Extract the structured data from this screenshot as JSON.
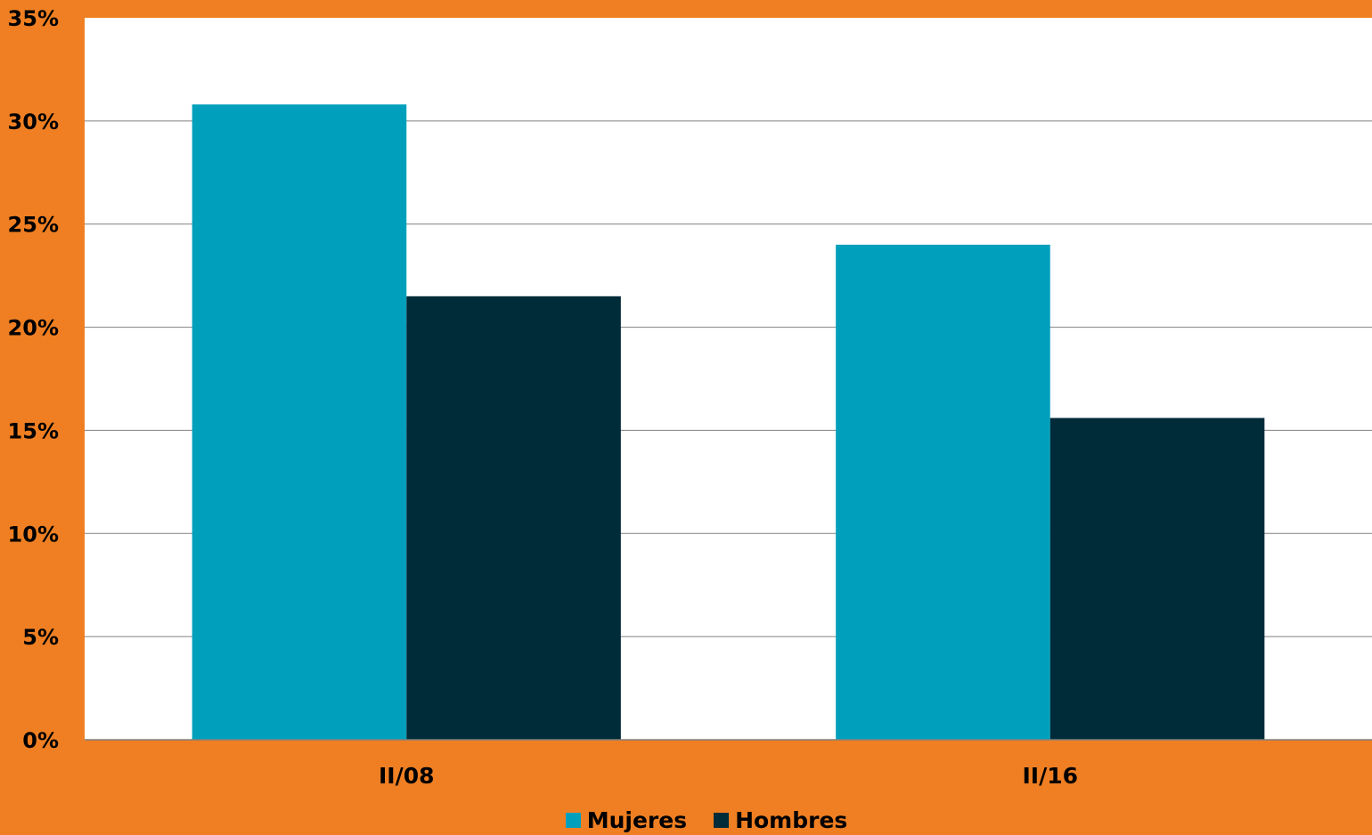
{
  "chart_data": {
    "type": "bar",
    "title": "",
    "xlabel": "",
    "ylabel": "",
    "categories": [
      "II/08",
      "II/16"
    ],
    "series": [
      {
        "name": "Mujeres",
        "values": [
          30.8,
          24.0
        ],
        "color": "#00a0bc"
      },
      {
        "name": "Hombres",
        "values": [
          21.5,
          15.6
        ],
        "color": "#002b39"
      }
    ],
    "ylim": [
      0,
      35
    ],
    "yticks": [
      0,
      5,
      10,
      15,
      20,
      25,
      30,
      35
    ],
    "ytick_labels": [
      "0%",
      "5%",
      "10%",
      "15%",
      "20%",
      "25%",
      "30%",
      "35%"
    ],
    "grid": true,
    "legend_position": "bottom",
    "colors": {
      "background": "#ef7f22",
      "plot_area": "#ffffff",
      "gridline": "#808080"
    }
  }
}
